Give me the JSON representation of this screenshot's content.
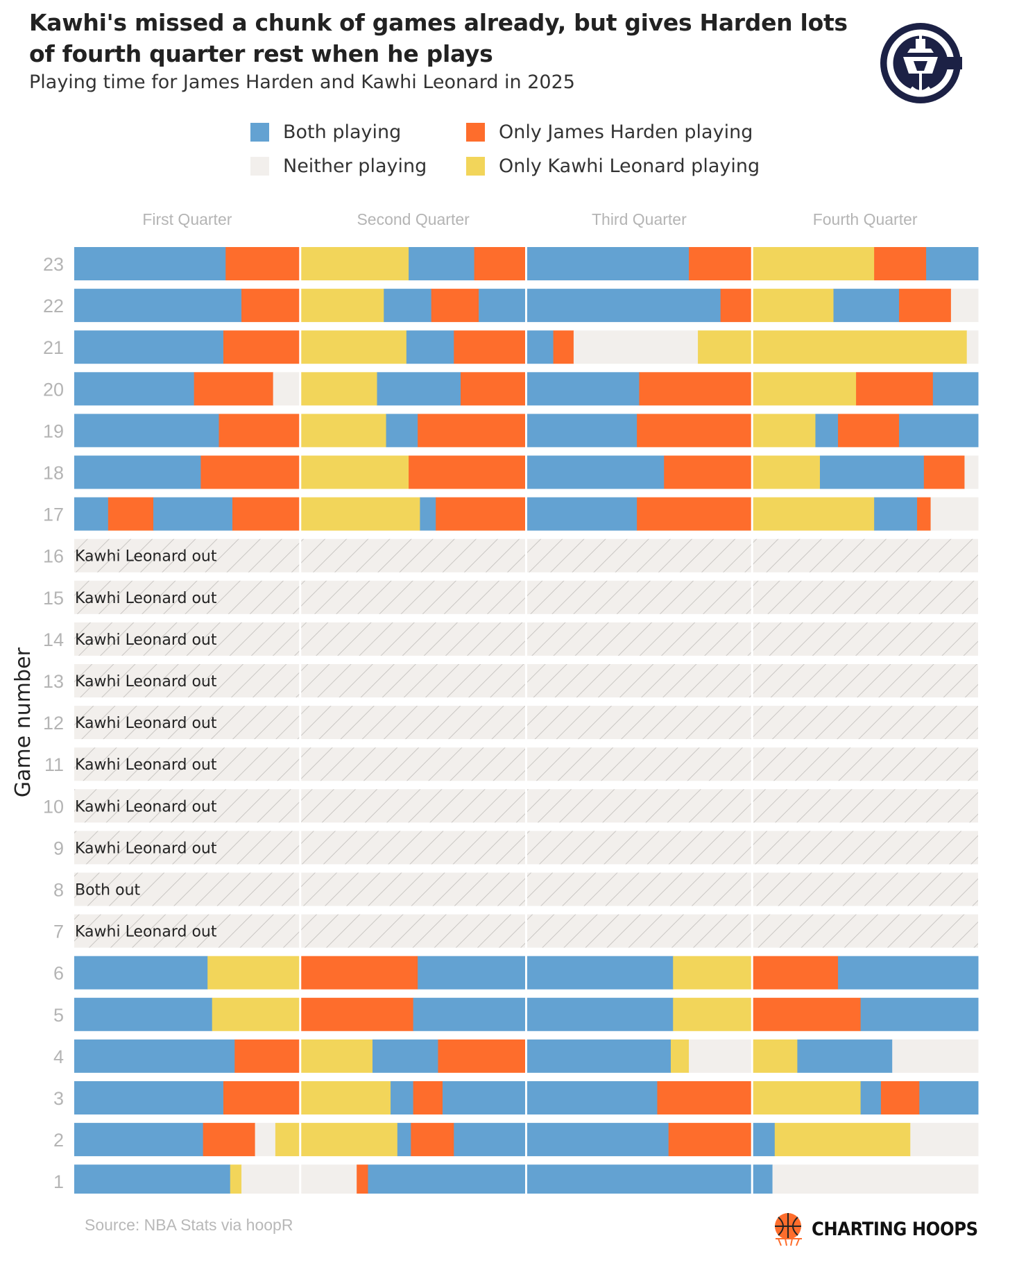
{
  "title": "Kawhi's missed a chunk of games already, but gives Harden lots of fourth quarter rest when he plays",
  "subtitle": "Playing time for James Harden and Kawhi Leonard in 2025",
  "legend": [
    {
      "key": "both",
      "label": "Both playing",
      "color": "#63A2D2"
    },
    {
      "key": "harden",
      "label": "Only James Harden playing",
      "color": "#FE6D2C"
    },
    {
      "key": "neither",
      "label": "Neither playing",
      "color": "#F2EFEC"
    },
    {
      "key": "kawhi",
      "label": "Only Kawhi Leonard playing",
      "color": "#F2D55A"
    }
  ],
  "source": "Source: NBA Stats via hoopR",
  "brand": "CHARTING HOOPS",
  "chart_data": {
    "type": "bar",
    "orientation": "horizontal-stacked",
    "ylabel": "Game number",
    "quarters": [
      "First Quarter",
      "Second Quarter",
      "Third Quarter",
      "Fourth Quarter"
    ],
    "quarter_length_min": 12,
    "segment_unit": "fraction of quarter",
    "games": [
      {
        "game": "23",
        "quarters": [
          [
            [
              "both",
              0.67
            ],
            [
              "harden",
              0.33
            ]
          ],
          [
            [
              "kawhi",
              0.48
            ],
            [
              "both",
              0.29
            ],
            [
              "harden",
              0.23
            ]
          ],
          [
            [
              "both",
              0.72
            ],
            [
              "harden",
              0.28
            ]
          ],
          [
            [
              "kawhi",
              0.54
            ],
            [
              "harden",
              0.23
            ],
            [
              "both",
              0.23
            ]
          ]
        ]
      },
      {
        "game": "22",
        "quarters": [
          [
            [
              "both",
              0.74
            ],
            [
              "harden",
              0.26
            ]
          ],
          [
            [
              "kawhi",
              0.37
            ],
            [
              "both",
              0.21
            ],
            [
              "harden",
              0.21
            ],
            [
              "both",
              0.21
            ]
          ],
          [
            [
              "both",
              0.86
            ],
            [
              "harden",
              0.14
            ]
          ],
          [
            [
              "kawhi",
              0.36
            ],
            [
              "both",
              0.29
            ],
            [
              "harden",
              0.23
            ],
            [
              "neither",
              0.12
            ]
          ]
        ]
      },
      {
        "game": "21",
        "quarters": [
          [
            [
              "both",
              0.66
            ],
            [
              "harden",
              0.34
            ]
          ],
          [
            [
              "kawhi",
              0.47
            ],
            [
              "both",
              0.21
            ],
            [
              "harden",
              0.32
            ]
          ],
          [
            [
              "both",
              0.12
            ],
            [
              "harden",
              0.09
            ],
            [
              "neither",
              0.55
            ],
            [
              "kawhi",
              0.24
            ]
          ],
          [
            [
              "kawhi",
              0.95
            ],
            [
              "neither",
              0.05
            ]
          ]
        ]
      },
      {
        "game": "20",
        "quarters": [
          [
            [
              "both",
              0.53
            ],
            [
              "harden",
              0.35
            ],
            [
              "neither",
              0.12
            ]
          ],
          [
            [
              "kawhi",
              0.34
            ],
            [
              "both",
              0.37
            ],
            [
              "harden",
              0.29
            ]
          ],
          [
            [
              "both",
              0.5
            ],
            [
              "harden",
              0.5
            ]
          ],
          [
            [
              "kawhi",
              0.46
            ],
            [
              "harden",
              0.34
            ],
            [
              "both",
              0.2
            ]
          ]
        ]
      },
      {
        "game": "19",
        "quarters": [
          [
            [
              "both",
              0.64
            ],
            [
              "harden",
              0.36
            ]
          ],
          [
            [
              "kawhi",
              0.38
            ],
            [
              "both",
              0.14
            ],
            [
              "harden",
              0.48
            ]
          ],
          [
            [
              "both",
              0.49
            ],
            [
              "harden",
              0.51
            ]
          ],
          [
            [
              "kawhi",
              0.28
            ],
            [
              "both",
              0.1
            ],
            [
              "harden",
              0.27
            ],
            [
              "both",
              0.35
            ]
          ]
        ]
      },
      {
        "game": "18",
        "quarters": [
          [
            [
              "both",
              0.56
            ],
            [
              "harden",
              0.44
            ]
          ],
          [
            [
              "kawhi",
              0.48
            ],
            [
              "harden",
              0.52
            ]
          ],
          [
            [
              "both",
              0.61
            ],
            [
              "harden",
              0.39
            ]
          ],
          [
            [
              "kawhi",
              0.3
            ],
            [
              "both",
              0.46
            ],
            [
              "harden",
              0.18
            ],
            [
              "neither",
              0.06
            ]
          ]
        ]
      },
      {
        "game": "17",
        "quarters": [
          [
            [
              "both",
              0.15
            ],
            [
              "harden",
              0.2
            ],
            [
              "both",
              0.35
            ],
            [
              "harden",
              0.3
            ]
          ],
          [
            [
              "kawhi",
              0.53
            ],
            [
              "both",
              0.07
            ],
            [
              "harden",
              0.4
            ]
          ],
          [
            [
              "both",
              0.49
            ],
            [
              "harden",
              0.51
            ]
          ],
          [
            [
              "kawhi",
              0.54
            ],
            [
              "both",
              0.19
            ],
            [
              "harden",
              0.06
            ],
            [
              "neither",
              0.21
            ]
          ]
        ]
      },
      {
        "game": "16",
        "note": "Kawhi Leonard out"
      },
      {
        "game": "15",
        "note": "Kawhi Leonard out"
      },
      {
        "game": "14",
        "note": "Kawhi Leonard out"
      },
      {
        "game": "13",
        "note": "Kawhi Leonard out"
      },
      {
        "game": "12",
        "note": "Kawhi Leonard out"
      },
      {
        "game": "11",
        "note": "Kawhi Leonard out"
      },
      {
        "game": "10",
        "note": "Kawhi Leonard out"
      },
      {
        "game": "9",
        "note": "Kawhi Leonard out"
      },
      {
        "game": "8",
        "note": "Both out"
      },
      {
        "game": "7",
        "note": "Kawhi Leonard out"
      },
      {
        "game": "6",
        "quarters": [
          [
            [
              "both",
              0.59
            ],
            [
              "kawhi",
              0.41
            ]
          ],
          [
            [
              "harden",
              0.52
            ],
            [
              "both",
              0.48
            ]
          ],
          [
            [
              "both",
              0.65
            ],
            [
              "kawhi",
              0.35
            ]
          ],
          [
            [
              "harden",
              0.38
            ],
            [
              "both",
              0.62
            ]
          ]
        ]
      },
      {
        "game": "5",
        "quarters": [
          [
            [
              "both",
              0.61
            ],
            [
              "kawhi",
              0.39
            ]
          ],
          [
            [
              "harden",
              0.5
            ],
            [
              "both",
              0.5
            ]
          ],
          [
            [
              "both",
              0.65
            ],
            [
              "kawhi",
              0.35
            ]
          ],
          [
            [
              "harden",
              0.48
            ],
            [
              "both",
              0.52
            ]
          ]
        ]
      },
      {
        "game": "4",
        "quarters": [
          [
            [
              "both",
              0.71
            ],
            [
              "harden",
              0.29
            ]
          ],
          [
            [
              "kawhi",
              0.32
            ],
            [
              "both",
              0.29
            ],
            [
              "harden",
              0.39
            ]
          ],
          [
            [
              "both",
              0.64
            ],
            [
              "kawhi",
              0.08
            ],
            [
              "neither",
              0.28
            ]
          ],
          [
            [
              "kawhi",
              0.2
            ],
            [
              "both",
              0.42
            ],
            [
              "neither",
              0.38
            ]
          ]
        ]
      },
      {
        "game": "3",
        "quarters": [
          [
            [
              "both",
              0.66
            ],
            [
              "harden",
              0.34
            ]
          ],
          [
            [
              "kawhi",
              0.4
            ],
            [
              "both",
              0.1
            ],
            [
              "harden",
              0.13
            ],
            [
              "both",
              0.37
            ]
          ],
          [
            [
              "both",
              0.58
            ],
            [
              "harden",
              0.42
            ]
          ],
          [
            [
              "kawhi",
              0.48
            ],
            [
              "both",
              0.09
            ],
            [
              "harden",
              0.17
            ],
            [
              "both",
              0.26
            ]
          ]
        ]
      },
      {
        "game": "2",
        "quarters": [
          [
            [
              "both",
              0.57
            ],
            [
              "harden",
              0.23
            ],
            [
              "neither",
              0.09
            ],
            [
              "kawhi",
              0.11
            ]
          ],
          [
            [
              "kawhi",
              0.43
            ],
            [
              "both",
              0.06
            ],
            [
              "harden",
              0.19
            ],
            [
              "both",
              0.32
            ]
          ],
          [
            [
              "both",
              0.63
            ],
            [
              "harden",
              0.37
            ]
          ],
          [
            [
              "both",
              0.1
            ],
            [
              "kawhi",
              0.6
            ],
            [
              "neither",
              0.3
            ]
          ]
        ]
      },
      {
        "game": "1",
        "quarters": [
          [
            [
              "both",
              0.69
            ],
            [
              "kawhi",
              0.05
            ],
            [
              "neither",
              0.26
            ]
          ],
          [
            [
              "neither",
              0.25
            ],
            [
              "harden",
              0.05
            ],
            [
              "both",
              0.7
            ]
          ],
          [
            [
              "both",
              1.0
            ]
          ],
          [
            [
              "both",
              0.09
            ],
            [
              "neither",
              0.91
            ]
          ]
        ]
      }
    ]
  }
}
